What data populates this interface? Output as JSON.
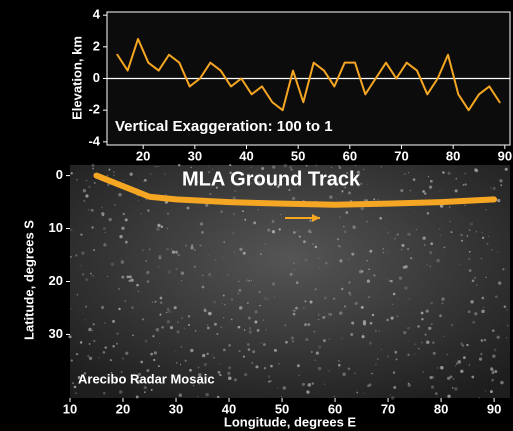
{
  "chart_data": [
    {
      "type": "line",
      "y_label": "Elevation, km",
      "annotation": "Vertical Exaggeration: 100 to 1",
      "xlim": [
        13,
        91
      ],
      "xticks": [
        20,
        30,
        40,
        50,
        60,
        70,
        80,
        90
      ],
      "ylim": [
        -4.2,
        4.2
      ],
      "yticks": [
        -4,
        -2,
        0,
        2,
        4
      ],
      "series": [
        {
          "color": "#f5a623",
          "x": [
            15,
            17,
            19,
            21,
            23,
            25,
            27,
            29,
            31,
            33,
            35,
            37,
            39,
            41,
            43,
            45,
            47,
            49,
            51,
            53,
            55,
            57,
            59,
            61,
            63,
            65,
            67,
            69,
            71,
            73,
            75,
            77,
            79,
            81,
            83,
            85,
            87,
            89
          ],
          "values": [
            1.5,
            0.5,
            2.5,
            1,
            0.5,
            1.5,
            1,
            -0.5,
            0,
            1,
            0.5,
            -0.5,
            0,
            -1,
            -0.5,
            -1.5,
            -2,
            0.5,
            -1.5,
            1,
            0.5,
            -0.5,
            1,
            1,
            -1,
            0,
            1,
            0,
            1,
            0.5,
            -1,
            0,
            1.5,
            -1,
            -2,
            -1,
            -0.5,
            -1.5
          ]
        }
      ]
    },
    {
      "type": "line",
      "title": "MLA Ground Track",
      "annotation": "Arecibo Radar Mosaic",
      "x_label": "Longitude, degrees E",
      "y_label": "Latitude, degrees S",
      "xlim": [
        10,
        93
      ],
      "xticks": [
        10,
        20,
        30,
        40,
        50,
        60,
        70,
        80,
        90
      ],
      "ylim": [
        42,
        -2
      ],
      "yticks": [
        0,
        10,
        20,
        30
      ],
      "series": [
        {
          "color": "#f5a623",
          "x": [
            15,
            20,
            25,
            30,
            40,
            50,
            60,
            70,
            80,
            90
          ],
          "values": [
            0,
            2,
            4,
            4.5,
            5,
            5.3,
            5.5,
            5.3,
            5,
            4.5
          ]
        }
      ]
    }
  ]
}
